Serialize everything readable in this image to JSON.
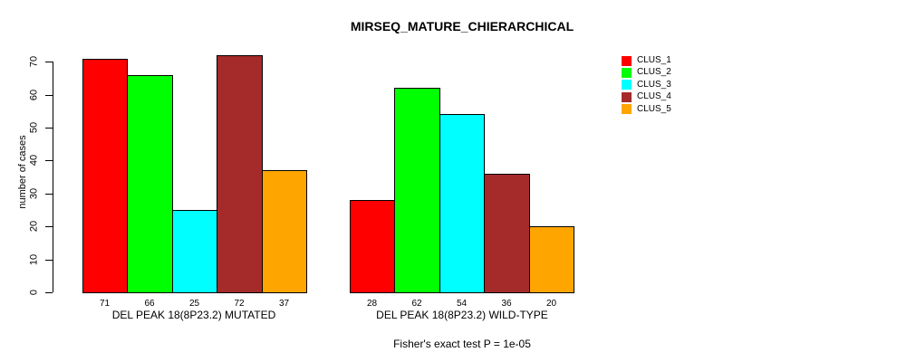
{
  "title": "MIRSEQ_MATURE_CHIERARCHICAL",
  "chart_data": {
    "type": "bar",
    "title": "MIRSEQ_MATURE_CHIERARCHICAL",
    "ylabel": "number of cases",
    "xlabel": "",
    "ylim": [
      0,
      75
    ],
    "yticks": [
      0,
      10,
      20,
      30,
      40,
      50,
      60,
      70
    ],
    "grid": false,
    "legend_position": "top-right",
    "categories": [
      "DEL PEAK 18(8P23.2) MUTATED",
      "DEL PEAK 18(8P23.2) WILD-TYPE"
    ],
    "series": [
      {
        "name": "CLUS_1",
        "color": "#FF0000",
        "values": [
          71,
          28
        ]
      },
      {
        "name": "CLUS_2",
        "color": "#00FF00",
        "values": [
          66,
          62
        ]
      },
      {
        "name": "CLUS_3",
        "color": "#00FFFF",
        "values": [
          25,
          54
        ]
      },
      {
        "name": "CLUS_4",
        "color": "#A52A2A",
        "values": [
          72,
          36
        ]
      },
      {
        "name": "CLUS_5",
        "color": "#FFA500",
        "values": [
          37,
          20
        ]
      }
    ],
    "bar_value_labels": [
      [
        71,
        66,
        25,
        72,
        37
      ],
      [
        28,
        62,
        54,
        36,
        20
      ]
    ],
    "footnote": "Fisher's exact test P = 1e-05"
  }
}
